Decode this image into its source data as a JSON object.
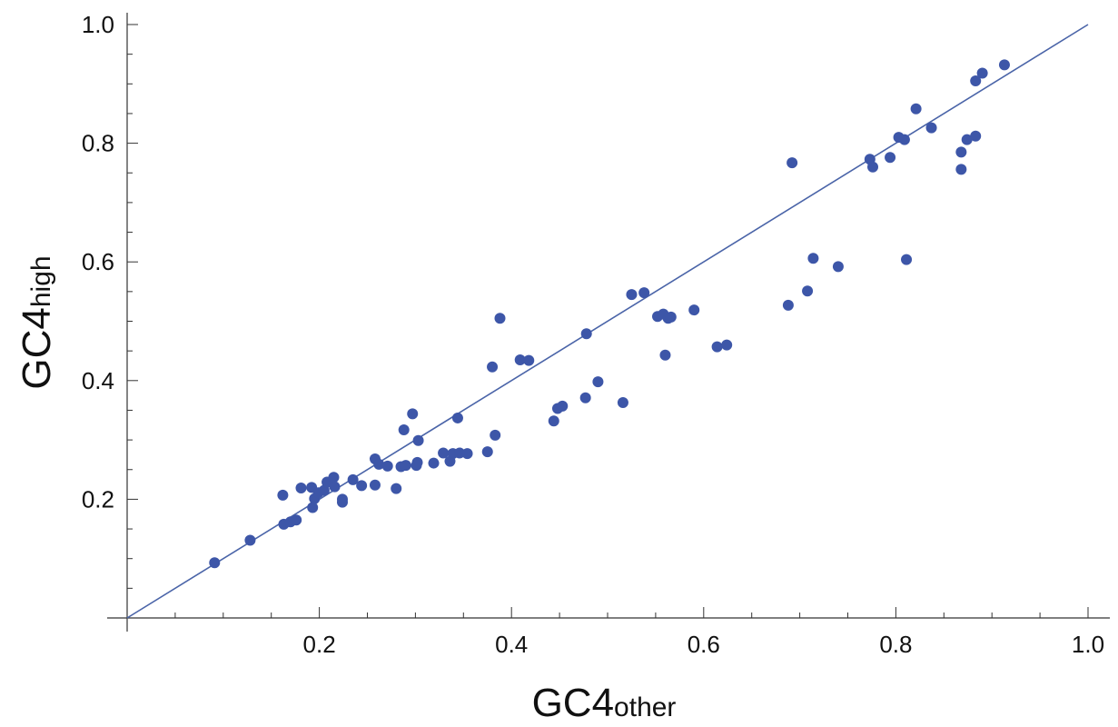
{
  "chart_data": {
    "type": "scatter",
    "title": "",
    "xlabel": {
      "main": "GC4",
      "sub": "other"
    },
    "ylabel": {
      "main": "GC4",
      "sub": "high"
    },
    "xlim": [
      0,
      1
    ],
    "ylim": [
      0,
      1
    ],
    "xticks": [
      0.2,
      0.4,
      0.6,
      0.8,
      1.0
    ],
    "yticks": [
      0.2,
      0.4,
      0.6,
      0.8,
      1.0
    ],
    "xtick_labels": [
      "0.2",
      "0.4",
      "0.6",
      "0.8",
      "1.0"
    ],
    "ytick_labels": [
      "0.2",
      "0.4",
      "0.6",
      "0.8",
      "1.0"
    ],
    "grid": false,
    "legend": "none",
    "reference_line": {
      "from": [
        0,
        0
      ],
      "to": [
        1,
        1
      ],
      "color": "#4a64a8"
    },
    "marker_color": "#3d56a8",
    "series": [
      {
        "points": [
          [
            0.091,
            0.093
          ],
          [
            0.128,
            0.131
          ],
          [
            0.163,
            0.158
          ],
          [
            0.17,
            0.162
          ],
          [
            0.176,
            0.165
          ],
          [
            0.162,
            0.207
          ],
          [
            0.181,
            0.219
          ],
          [
            0.192,
            0.22
          ],
          [
            0.195,
            0.201
          ],
          [
            0.193,
            0.186
          ],
          [
            0.199,
            0.211
          ],
          [
            0.205,
            0.215
          ],
          [
            0.208,
            0.229
          ],
          [
            0.215,
            0.237
          ],
          [
            0.216,
            0.221
          ],
          [
            0.224,
            0.2
          ],
          [
            0.224,
            0.195
          ],
          [
            0.235,
            0.233
          ],
          [
            0.244,
            0.223
          ],
          [
            0.258,
            0.268
          ],
          [
            0.258,
            0.224
          ],
          [
            0.262,
            0.259
          ],
          [
            0.271,
            0.256
          ],
          [
            0.28,
            0.218
          ],
          [
            0.285,
            0.255
          ],
          [
            0.288,
            0.317
          ],
          [
            0.29,
            0.257
          ],
          [
            0.297,
            0.344
          ],
          [
            0.301,
            0.257
          ],
          [
            0.302,
            0.262
          ],
          [
            0.303,
            0.299
          ],
          [
            0.319,
            0.261
          ],
          [
            0.329,
            0.278
          ],
          [
            0.336,
            0.264
          ],
          [
            0.339,
            0.277
          ],
          [
            0.344,
            0.337
          ],
          [
            0.346,
            0.278
          ],
          [
            0.354,
            0.277
          ],
          [
            0.375,
            0.28
          ],
          [
            0.38,
            0.423
          ],
          [
            0.383,
            0.308
          ],
          [
            0.388,
            0.505
          ],
          [
            0.409,
            0.435
          ],
          [
            0.418,
            0.434
          ],
          [
            0.444,
            0.332
          ],
          [
            0.448,
            0.353
          ],
          [
            0.453,
            0.357
          ],
          [
            0.477,
            0.371
          ],
          [
            0.478,
            0.479
          ],
          [
            0.49,
            0.398
          ],
          [
            0.516,
            0.363
          ],
          [
            0.525,
            0.545
          ],
          [
            0.538,
            0.548
          ],
          [
            0.552,
            0.508
          ],
          [
            0.558,
            0.512
          ],
          [
            0.56,
            0.443
          ],
          [
            0.563,
            0.505
          ],
          [
            0.566,
            0.507
          ],
          [
            0.59,
            0.519
          ],
          [
            0.614,
            0.457
          ],
          [
            0.624,
            0.46
          ],
          [
            0.688,
            0.527
          ],
          [
            0.692,
            0.767
          ],
          [
            0.708,
            0.551
          ],
          [
            0.714,
            0.606
          ],
          [
            0.74,
            0.592
          ],
          [
            0.773,
            0.773
          ],
          [
            0.776,
            0.76
          ],
          [
            0.794,
            0.776
          ],
          [
            0.803,
            0.81
          ],
          [
            0.809,
            0.806
          ],
          [
            0.811,
            0.604
          ],
          [
            0.821,
            0.858
          ],
          [
            0.837,
            0.826
          ],
          [
            0.868,
            0.785
          ],
          [
            0.868,
            0.756
          ],
          [
            0.874,
            0.806
          ],
          [
            0.883,
            0.812
          ],
          [
            0.883,
            0.905
          ],
          [
            0.89,
            0.918
          ],
          [
            0.913,
            0.932
          ]
        ]
      }
    ]
  }
}
